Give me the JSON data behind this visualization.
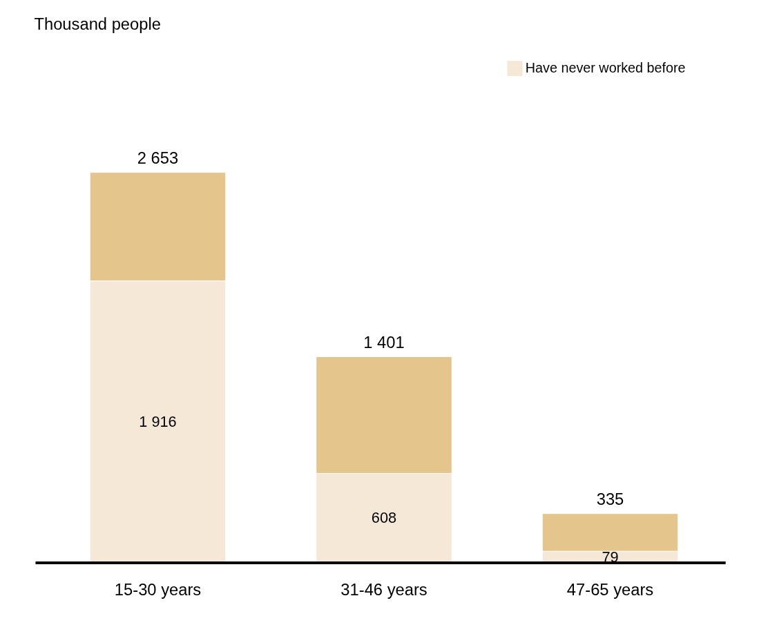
{
  "chart_data": {
    "type": "bar",
    "title": "Thousand people",
    "categories": [
      "15-30 years",
      "31-46 years",
      "47-65 years"
    ],
    "stacked": true,
    "series": [
      {
        "name": "Have never worked before",
        "color": "#f5e8d6",
        "values": [
          1916,
          608,
          79
        ],
        "value_labels": [
          "1 916",
          "608",
          "79"
        ]
      },
      {
        "color": "#e4c68c",
        "values": [
          737,
          793,
          256
        ]
      }
    ],
    "totals": [
      "2 653",
      "1 401",
      "335"
    ],
    "legend": "top right",
    "grid": false
  }
}
